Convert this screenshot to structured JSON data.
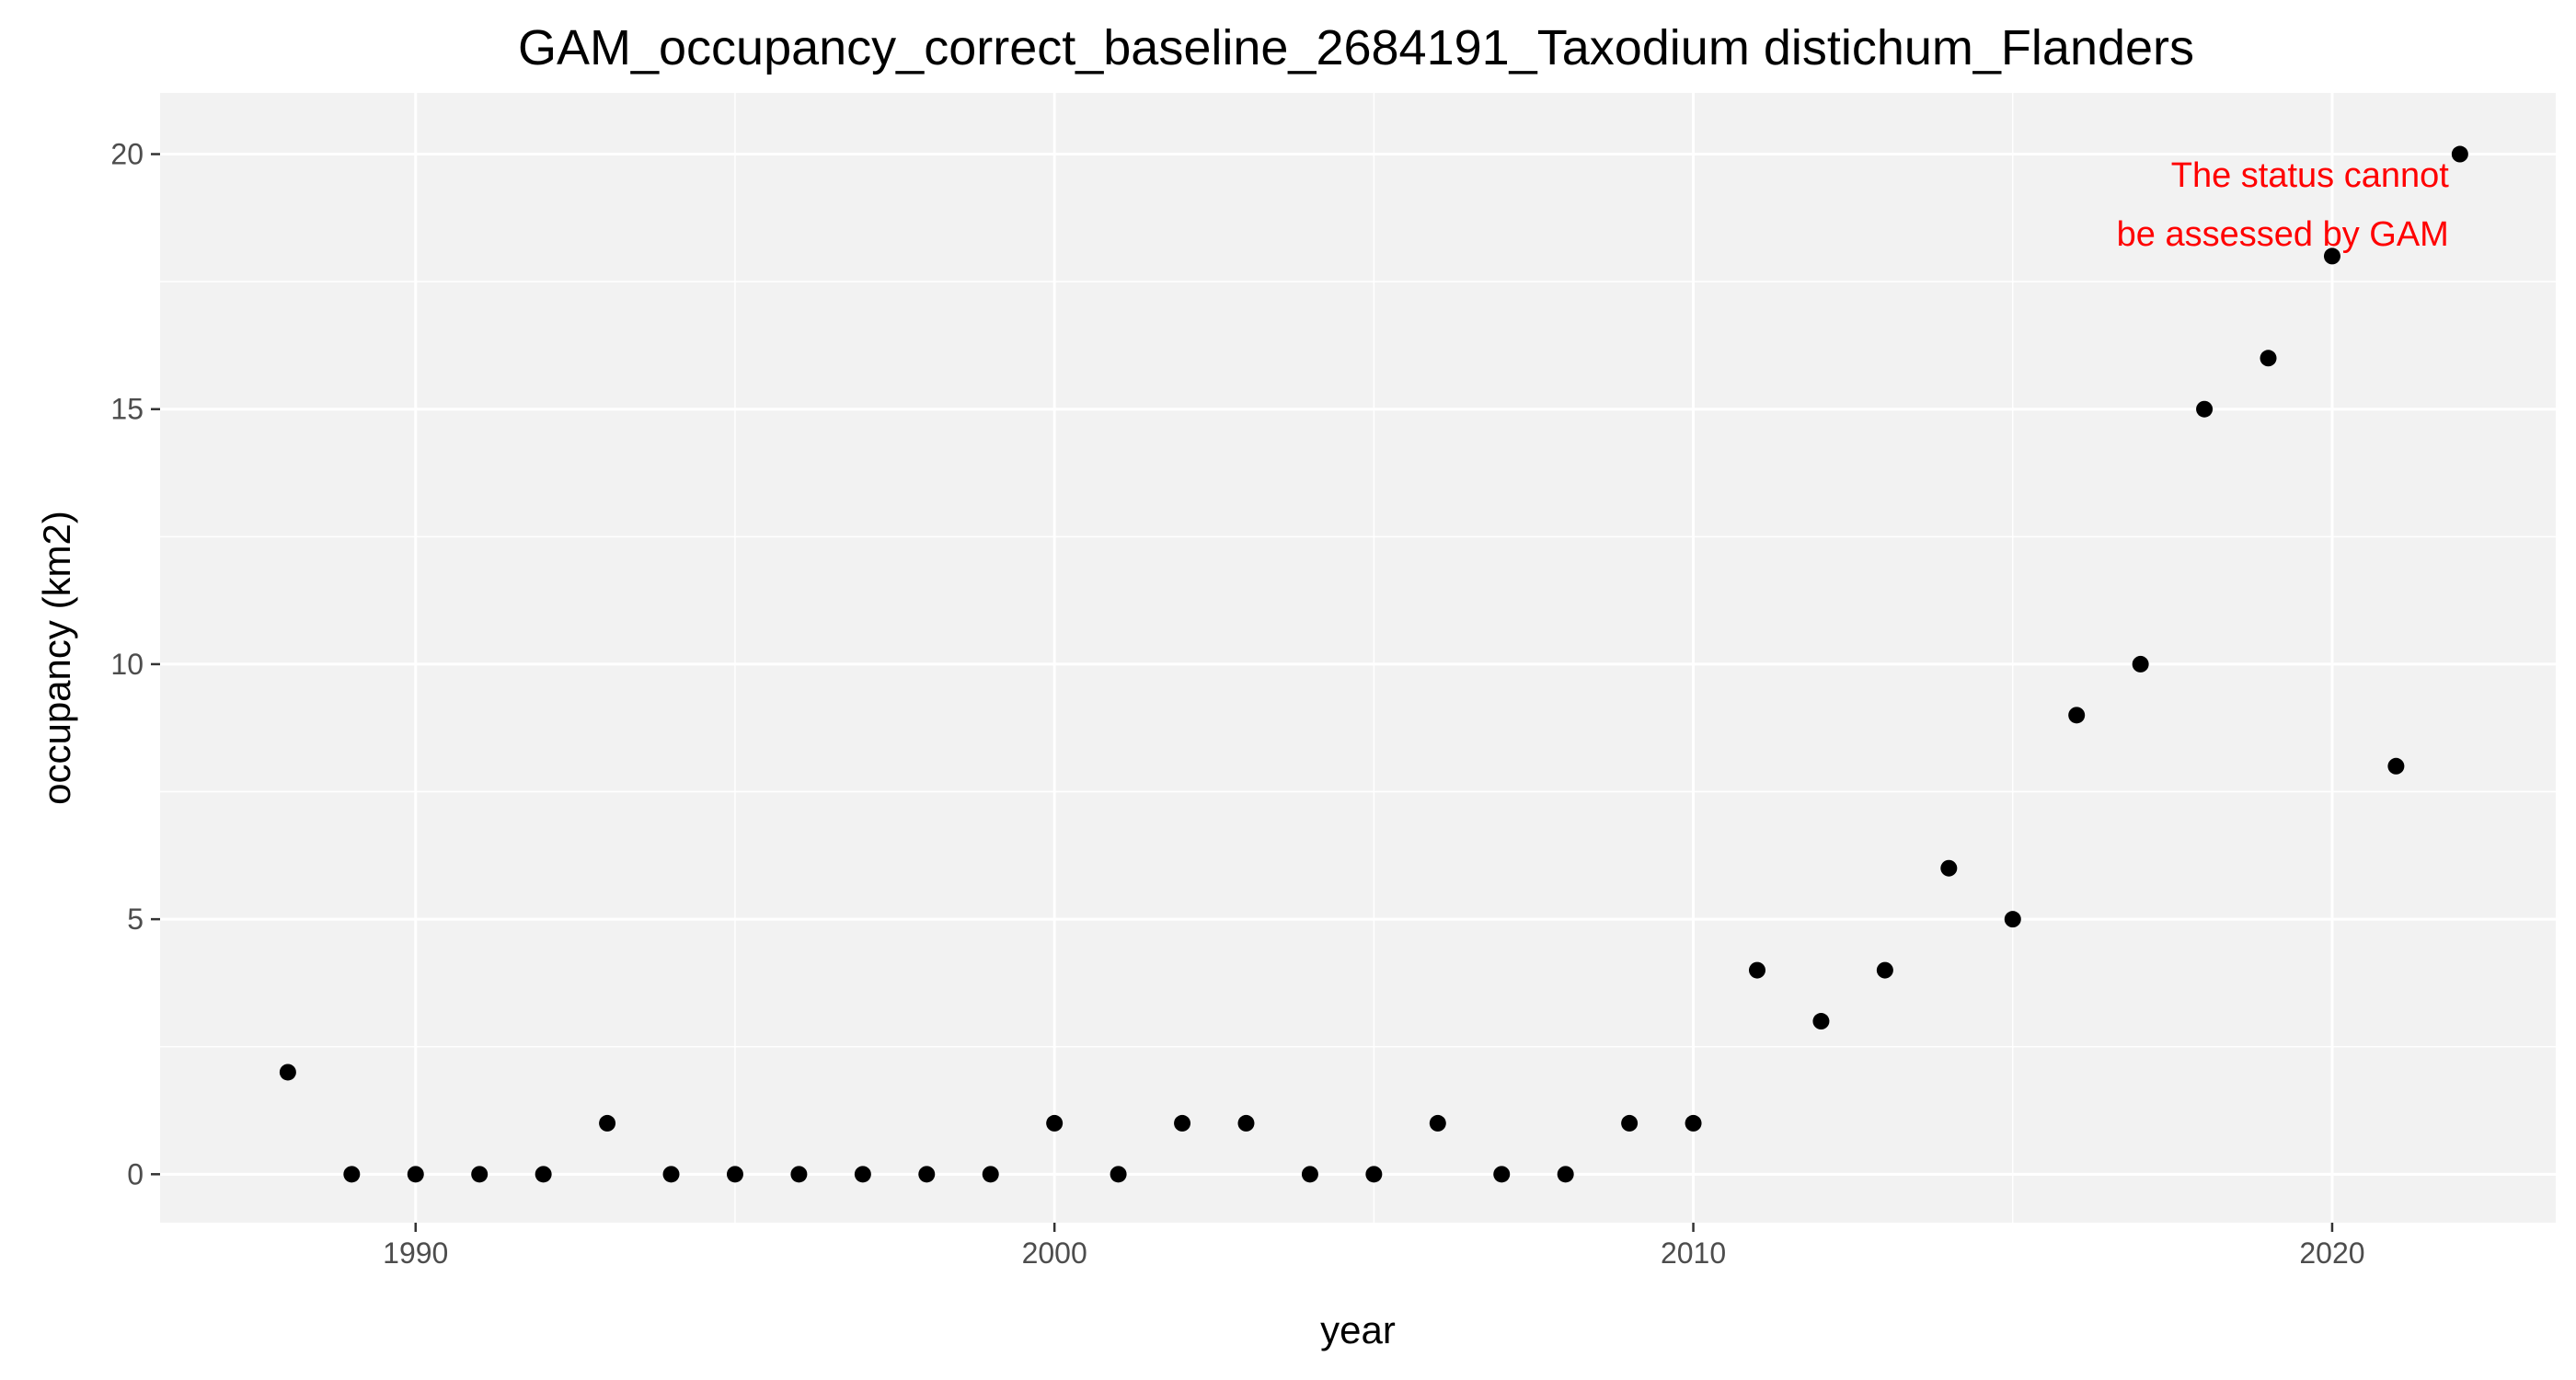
{
  "chart_data": {
    "type": "scatter",
    "title": "GAM_occupancy_correct_baseline_2684191_Taxodium distichum_Flanders",
    "xlabel": "year",
    "ylabel": "occupancy (km2)",
    "xlim": [
      1986,
      2023.5
    ],
    "ylim": [
      -0.95,
      21.2
    ],
    "x_ticks": [
      1990,
      2000,
      2010,
      2020
    ],
    "y_ticks": [
      0,
      5,
      10,
      15,
      20
    ],
    "x_tick_labels": [
      "1990",
      "2000",
      "2010",
      "2020"
    ],
    "y_tick_labels": [
      "0",
      "5",
      "10",
      "15",
      "20"
    ],
    "grid": true,
    "legend": "none",
    "point_color": "#000000",
    "panel_color": "#f2f2f2",
    "grid_color": "#ffffff",
    "x": [
      1988,
      1989,
      1990,
      1991,
      1992,
      1993,
      1994,
      1995,
      1996,
      1997,
      1998,
      1999,
      2000,
      2001,
      2002,
      2003,
      2004,
      2005,
      2006,
      2007,
      2008,
      2009,
      2010,
      2011,
      2012,
      2013,
      2014,
      2015,
      2016,
      2017,
      2018,
      2019,
      2020,
      2021,
      2022
    ],
    "y": [
      2,
      0,
      0,
      0,
      0,
      1,
      0,
      0,
      0,
      0,
      0,
      0,
      1,
      0,
      1,
      1,
      0,
      0,
      1,
      0,
      0,
      1,
      1,
      4,
      3,
      4,
      6,
      5,
      9,
      10,
      15,
      16,
      18,
      8,
      20
    ],
    "annotation": {
      "lines": [
        "The status cannot",
        "be assessed by GAM"
      ],
      "x": 2022,
      "y": 19,
      "color": "#ff0000"
    }
  }
}
